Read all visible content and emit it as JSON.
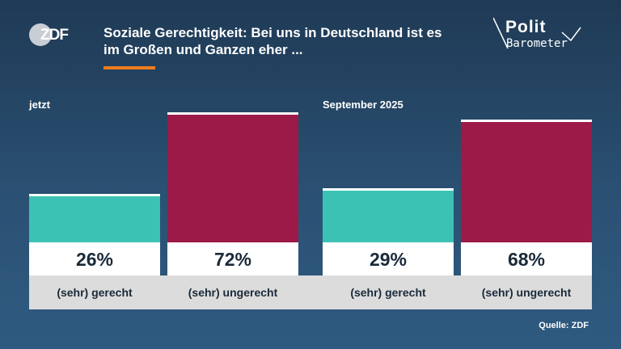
{
  "header": {
    "title": "Soziale Gerechtigkeit: Bei uns in Deutschland ist es im Großen und Ganzen eher ...",
    "logo_text": "ZDF",
    "brand_line1": "Polit",
    "brand_line2": "Barometer"
  },
  "colors": {
    "gerecht": "#3cc2b4",
    "ungerecht": "#9b1a48",
    "accent": "#f07d1c"
  },
  "chart_data": {
    "type": "bar",
    "categories": [
      "(sehr) gerecht",
      "(sehr) ungerecht"
    ],
    "series": [
      {
        "name": "jetzt",
        "values": [
          26,
          72
        ]
      },
      {
        "name": "September 2025",
        "values": [
          29,
          68
        ]
      }
    ],
    "value_labels": [
      [
        "26%",
        "72%"
      ],
      [
        "29%",
        "68%"
      ]
    ],
    "ylim": [
      0,
      72
    ]
  },
  "panels": [
    {
      "label": "jetzt"
    },
    {
      "label": "September 2025"
    }
  ],
  "footer": {
    "source": "Quelle: ZDF"
  }
}
